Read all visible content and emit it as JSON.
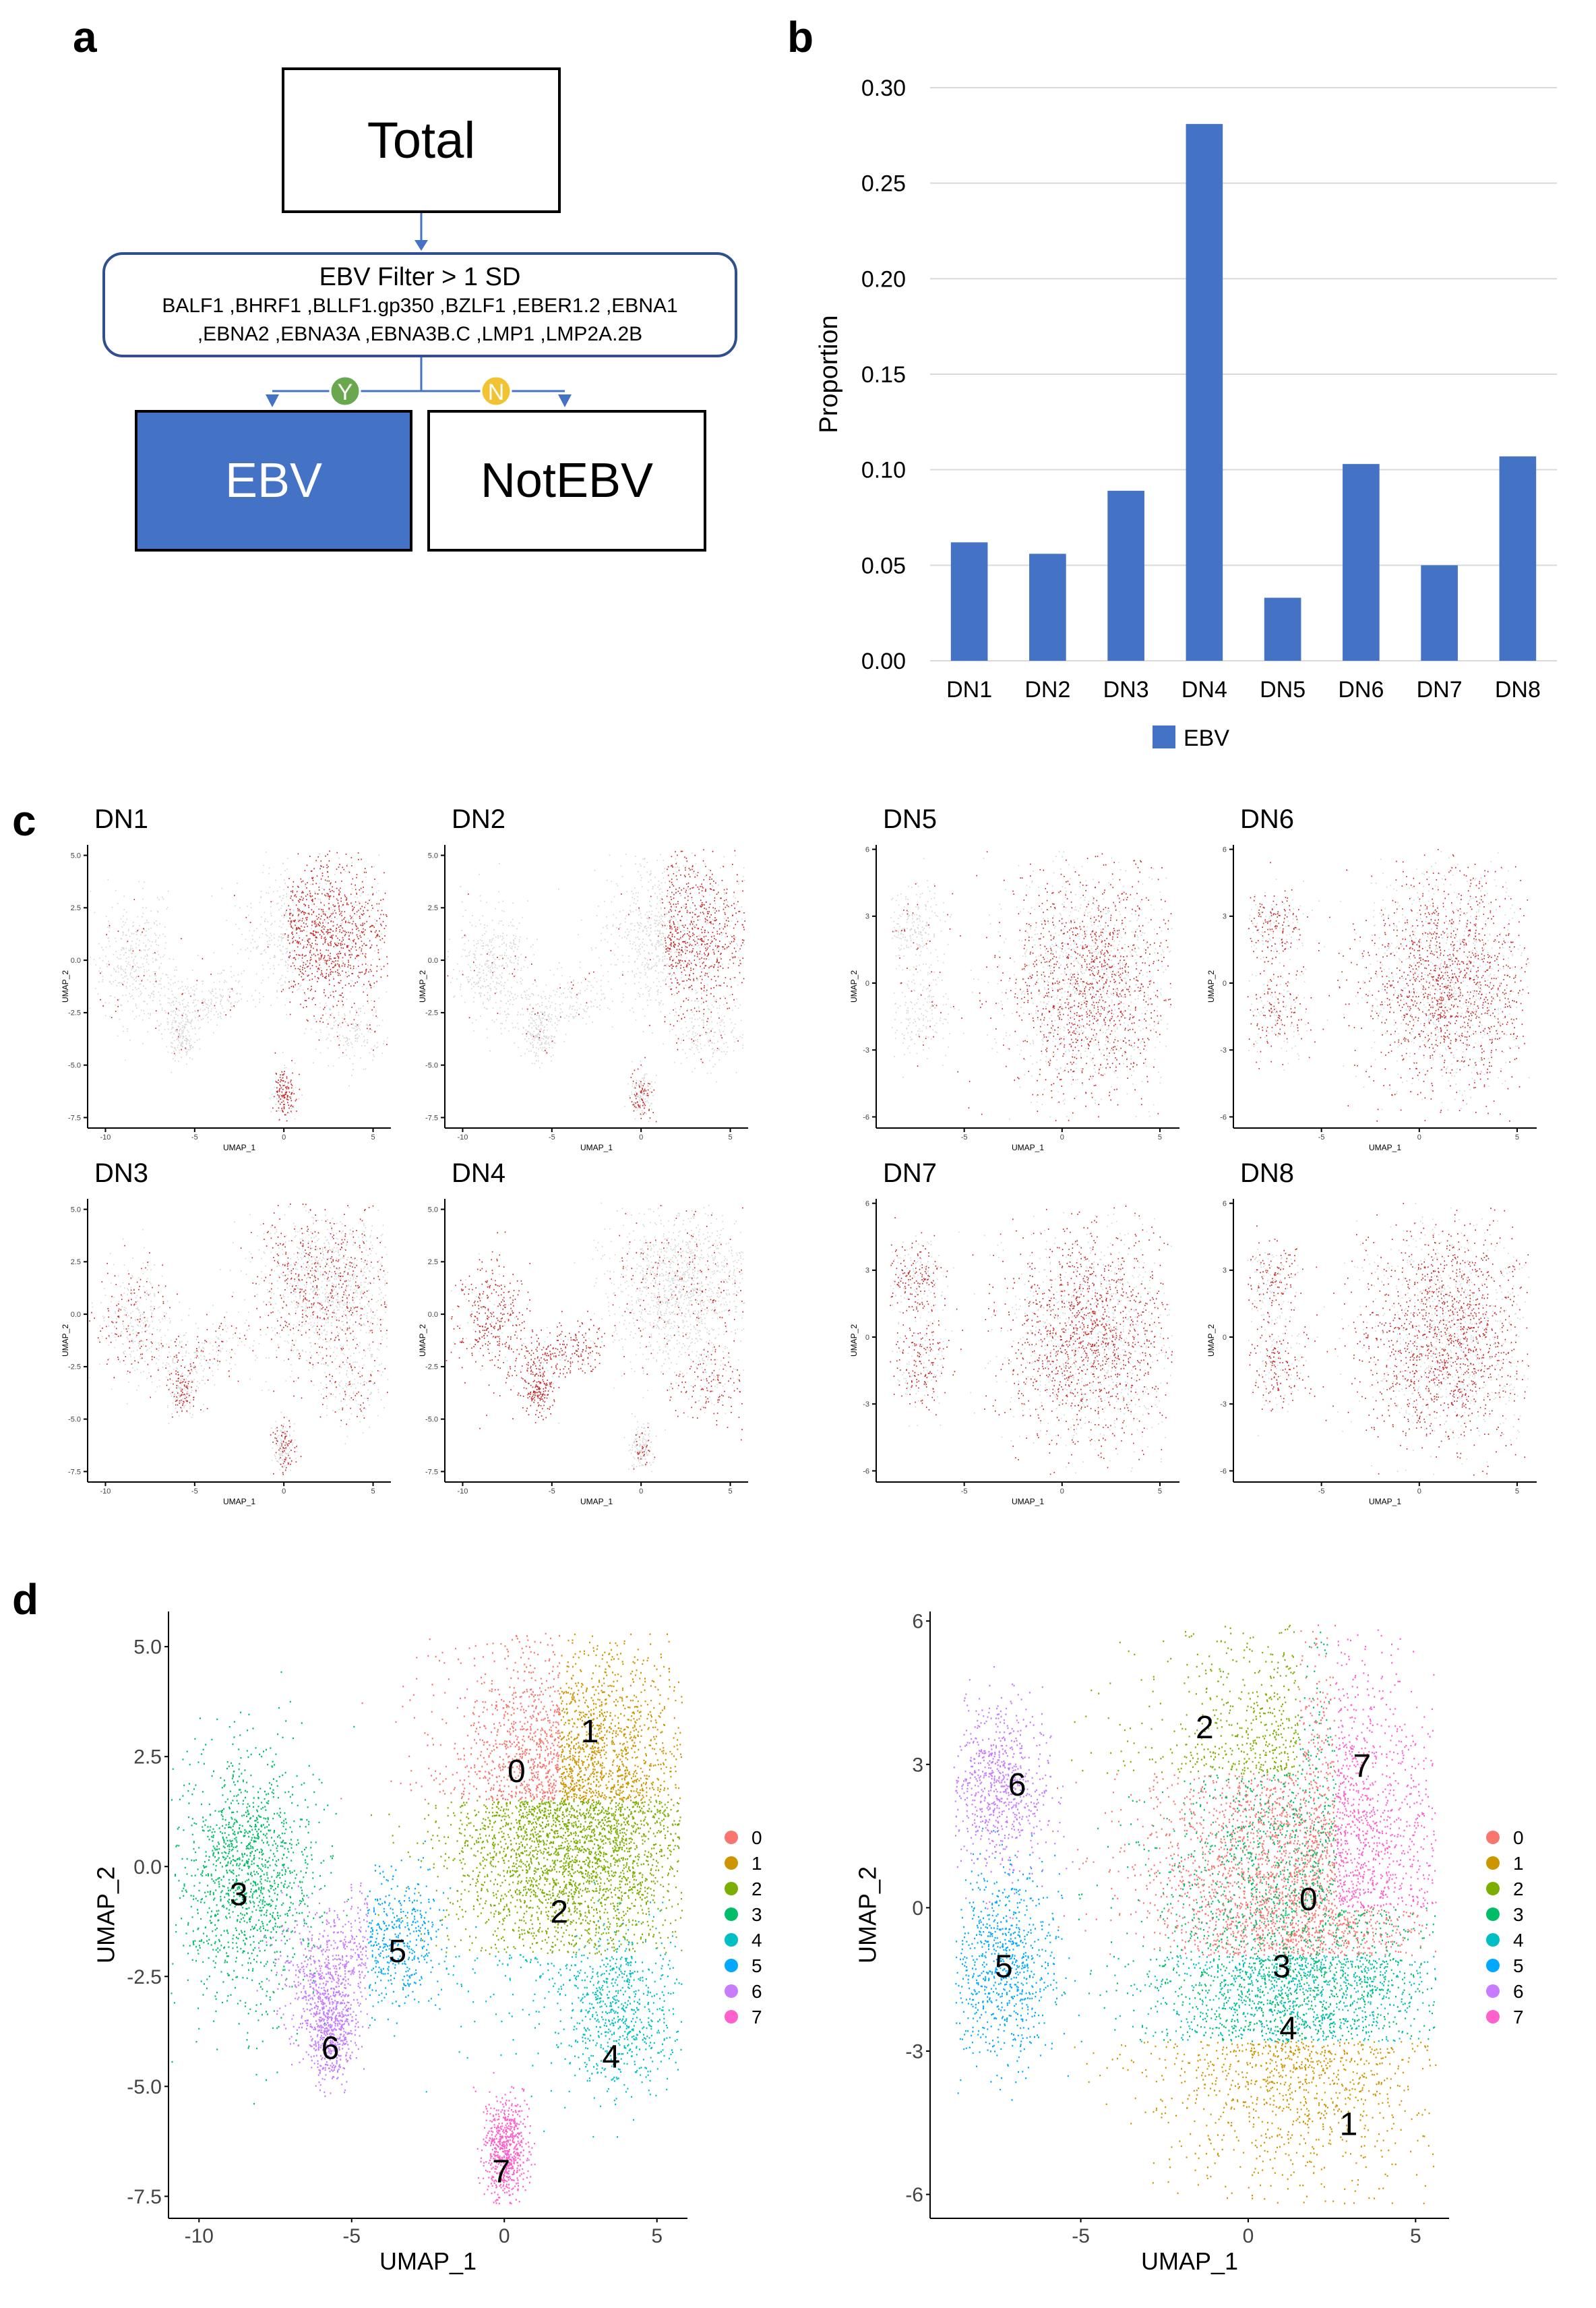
{
  "panel_a": {
    "label": "a",
    "total": "Total",
    "filter_title": "EBV Filter > 1 SD",
    "filter_genes_line1": "BALF1 ,BHRF1 ,BLLF1.gp350 ,BZLF1 ,EBER1.2 ,EBNA1",
    "filter_genes_line2": ",EBNA2 ,EBNA3A ,EBNA3B.C ,LMP1 ,LMP2A.2B",
    "yes_badge": "Y",
    "no_badge": "N",
    "ebv_box": "EBV",
    "notebv_box": "NotEBV",
    "colors": {
      "ebv_fill": "#4472c4",
      "badge_yes": "#6aa84f",
      "badge_no": "#f1c232",
      "arrow": "#4472c4"
    }
  },
  "panel_b": {
    "label": "b",
    "legend_label": "EBV"
  },
  "chart_data": [
    {
      "type": "bar",
      "title": "",
      "categories": [
        "DN1",
        "DN2",
        "DN3",
        "DN4",
        "DN5",
        "DN6",
        "DN7",
        "DN8"
      ],
      "series": [
        {
          "name": "EBV",
          "values": [
            0.062,
            0.056,
            0.089,
            0.281,
            0.033,
            0.103,
            0.05,
            0.107
          ]
        }
      ],
      "xlabel": "",
      "ylabel": "Proportion",
      "ylim": [
        0,
        0.3
      ],
      "yticks": [
        "0.00",
        "0.05",
        "0.10",
        "0.15",
        "0.20",
        "0.25",
        "0.30"
      ],
      "grid": true,
      "legend": "bottom",
      "color": "#4472c4"
    }
  ],
  "panel_c": {
    "label": "c",
    "plots": [
      {
        "title": "DN1",
        "highlight": "top-right lobe"
      },
      {
        "title": "DN2",
        "highlight": "top-right lobe"
      },
      {
        "title": "DN5",
        "highlight": "large lobe"
      },
      {
        "title": "DN6",
        "highlight": "whole map"
      },
      {
        "title": "DN3",
        "highlight": "scattered"
      },
      {
        "title": "DN4",
        "highlight": "left arm and lower-right"
      },
      {
        "title": "DN7",
        "highlight": "whole map"
      },
      {
        "title": "DN8",
        "highlight": "whole map"
      }
    ],
    "axis_x": "UMAP_1",
    "axis_y": "UMAP_2",
    "left_xticks": [
      "-10",
      "-5",
      "0",
      "5"
    ],
    "left_yticks": [
      "5.0",
      "2.5",
      "0.0",
      "-2.5",
      "-5.0",
      "-7.5"
    ],
    "right_xticks": [
      "-5",
      "0",
      "5"
    ],
    "right_yticks": [
      "6",
      "3",
      "0",
      "-3",
      "-6"
    ],
    "colors": {
      "expressed": "#c62828",
      "background": "#d6d6d6"
    }
  },
  "panel_d": {
    "label": "d",
    "xlabel": "UMAP_1",
    "ylabel": "UMAP_2",
    "left_xticks": [
      "-10",
      "-5",
      "0",
      "5"
    ],
    "left_yticks": [
      "5.0",
      "2.5",
      "0.0",
      "-2.5",
      "-5.0",
      "-7.5"
    ],
    "right_xticks": [
      "-5",
      "0",
      "5"
    ],
    "right_yticks": [
      "6",
      "3",
      "0",
      "-3",
      "-6"
    ],
    "legend": [
      {
        "label": "0",
        "color": "#F8766D"
      },
      {
        "label": "1",
        "color": "#CD9600"
      },
      {
        "label": "2",
        "color": "#7CAE00"
      },
      {
        "label": "3",
        "color": "#00BE67"
      },
      {
        "label": "4",
        "color": "#00BFC4"
      },
      {
        "label": "5",
        "color": "#00A9FF"
      },
      {
        "label": "6",
        "color": "#C77CFF"
      },
      {
        "label": "7",
        "color": "#FF61CC"
      }
    ],
    "left_clusters": [
      "0",
      "1",
      "2",
      "3",
      "4",
      "5",
      "6",
      "7"
    ],
    "right_clusters": [
      "0",
      "1",
      "2",
      "3",
      "4",
      "5",
      "6",
      "7"
    ]
  }
}
